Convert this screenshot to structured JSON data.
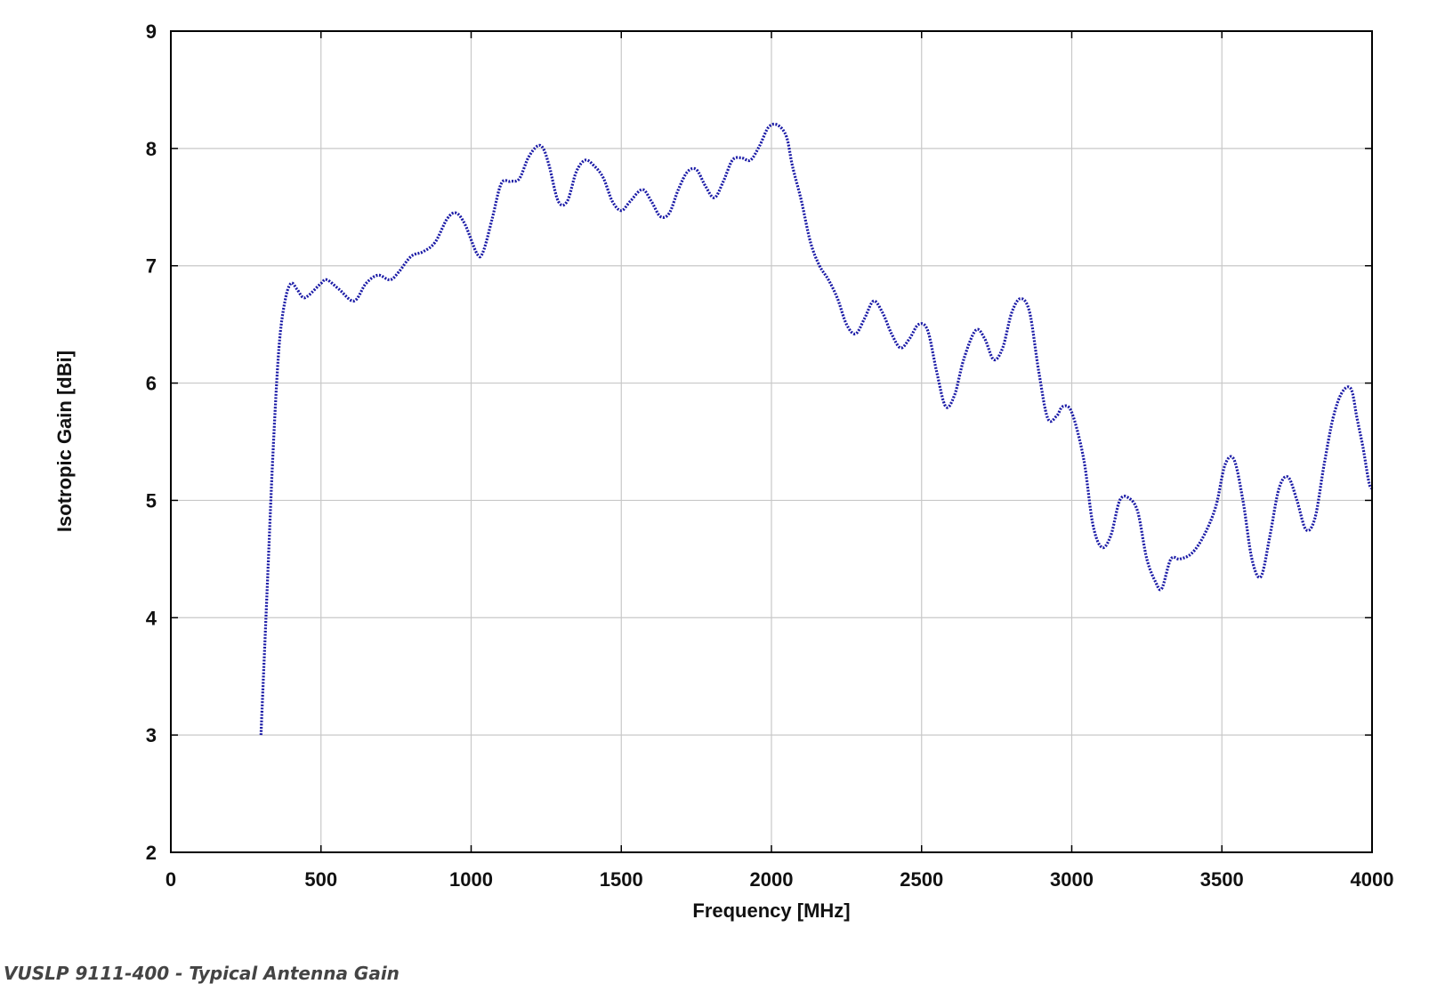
{
  "chart_data": {
    "type": "line",
    "title": "",
    "xlabel": "Frequency [MHz]",
    "ylabel": "Isotropic Gain [dBi]",
    "xlim": [
      0,
      4000
    ],
    "ylim": [
      2,
      9
    ],
    "x_ticks": [
      "0",
      "500",
      "1000",
      "1500",
      "2000",
      "2500",
      "3000",
      "3500",
      "4000"
    ],
    "y_ticks": [
      "2",
      "3",
      "4",
      "5",
      "6",
      "7",
      "8",
      "9"
    ],
    "grid": true,
    "legend": "none",
    "line_style": "dotted",
    "series": [
      {
        "color": "#1a1aa6",
        "x": [
          300,
          320,
          340,
          360,
          380,
          400,
          420,
          440,
          460,
          500,
          520,
          560,
          610,
          650,
          690,
          730,
          760,
          800,
          840,
          880,
          920,
          950,
          980,
          1020,
          1040,
          1070,
          1100,
          1130,
          1160,
          1190,
          1220,
          1240,
          1260,
          1290,
          1320,
          1350,
          1380,
          1410,
          1440,
          1470,
          1500,
          1530,
          1570,
          1600,
          1630,
          1660,
          1690,
          1720,
          1750,
          1780,
          1810,
          1840,
          1870,
          1900,
          1930,
          1960,
          1990,
          2020,
          2050,
          2070,
          2100,
          2130,
          2160,
          2190,
          2220,
          2250,
          2280,
          2310,
          2340,
          2370,
          2400,
          2430,
          2460,
          2490,
          2520,
          2550,
          2580,
          2610,
          2640,
          2680,
          2710,
          2740,
          2770,
          2800,
          2830,
          2860,
          2890,
          2920,
          2950,
          2970,
          3000,
          3040,
          3070,
          3100,
          3130,
          3160,
          3190,
          3220,
          3250,
          3280,
          3300,
          3330,
          3360,
          3400,
          3440,
          3480,
          3510,
          3540,
          3570,
          3600,
          3630,
          3660,
          3690,
          3720,
          3750,
          3780,
          3810,
          3840,
          3870,
          3900,
          3930,
          3950,
          3970,
          3990,
          4000
        ],
        "y": [
          3.0,
          4.2,
          5.4,
          6.3,
          6.7,
          6.85,
          6.8,
          6.73,
          6.75,
          6.85,
          6.88,
          6.8,
          6.7,
          6.85,
          6.92,
          6.88,
          6.95,
          7.08,
          7.12,
          7.2,
          7.4,
          7.45,
          7.35,
          7.1,
          7.12,
          7.4,
          7.7,
          7.72,
          7.74,
          7.92,
          8.02,
          8.0,
          7.85,
          7.55,
          7.55,
          7.8,
          7.9,
          7.85,
          7.75,
          7.55,
          7.47,
          7.55,
          7.65,
          7.55,
          7.42,
          7.45,
          7.65,
          7.8,
          7.82,
          7.68,
          7.58,
          7.72,
          7.9,
          7.92,
          7.9,
          8.02,
          8.18,
          8.2,
          8.1,
          7.85,
          7.55,
          7.2,
          7.0,
          6.88,
          6.72,
          6.5,
          6.42,
          6.55,
          6.7,
          6.6,
          6.42,
          6.3,
          6.38,
          6.5,
          6.45,
          6.1,
          5.8,
          5.9,
          6.2,
          6.45,
          6.38,
          6.2,
          6.3,
          6.6,
          6.72,
          6.6,
          6.1,
          5.7,
          5.72,
          5.8,
          5.75,
          5.35,
          4.8,
          4.6,
          4.7,
          5.0,
          5.02,
          4.9,
          4.5,
          4.3,
          4.25,
          4.5,
          4.5,
          4.55,
          4.7,
          4.95,
          5.3,
          5.35,
          5.0,
          4.5,
          4.35,
          4.7,
          5.1,
          5.2,
          5.0,
          4.75,
          4.85,
          5.3,
          5.7,
          5.92,
          5.95,
          5.7,
          5.45,
          5.15,
          5.1
        ]
      }
    ]
  },
  "caption": "VUSLP 9111-400 - Typical Antenna Gain"
}
